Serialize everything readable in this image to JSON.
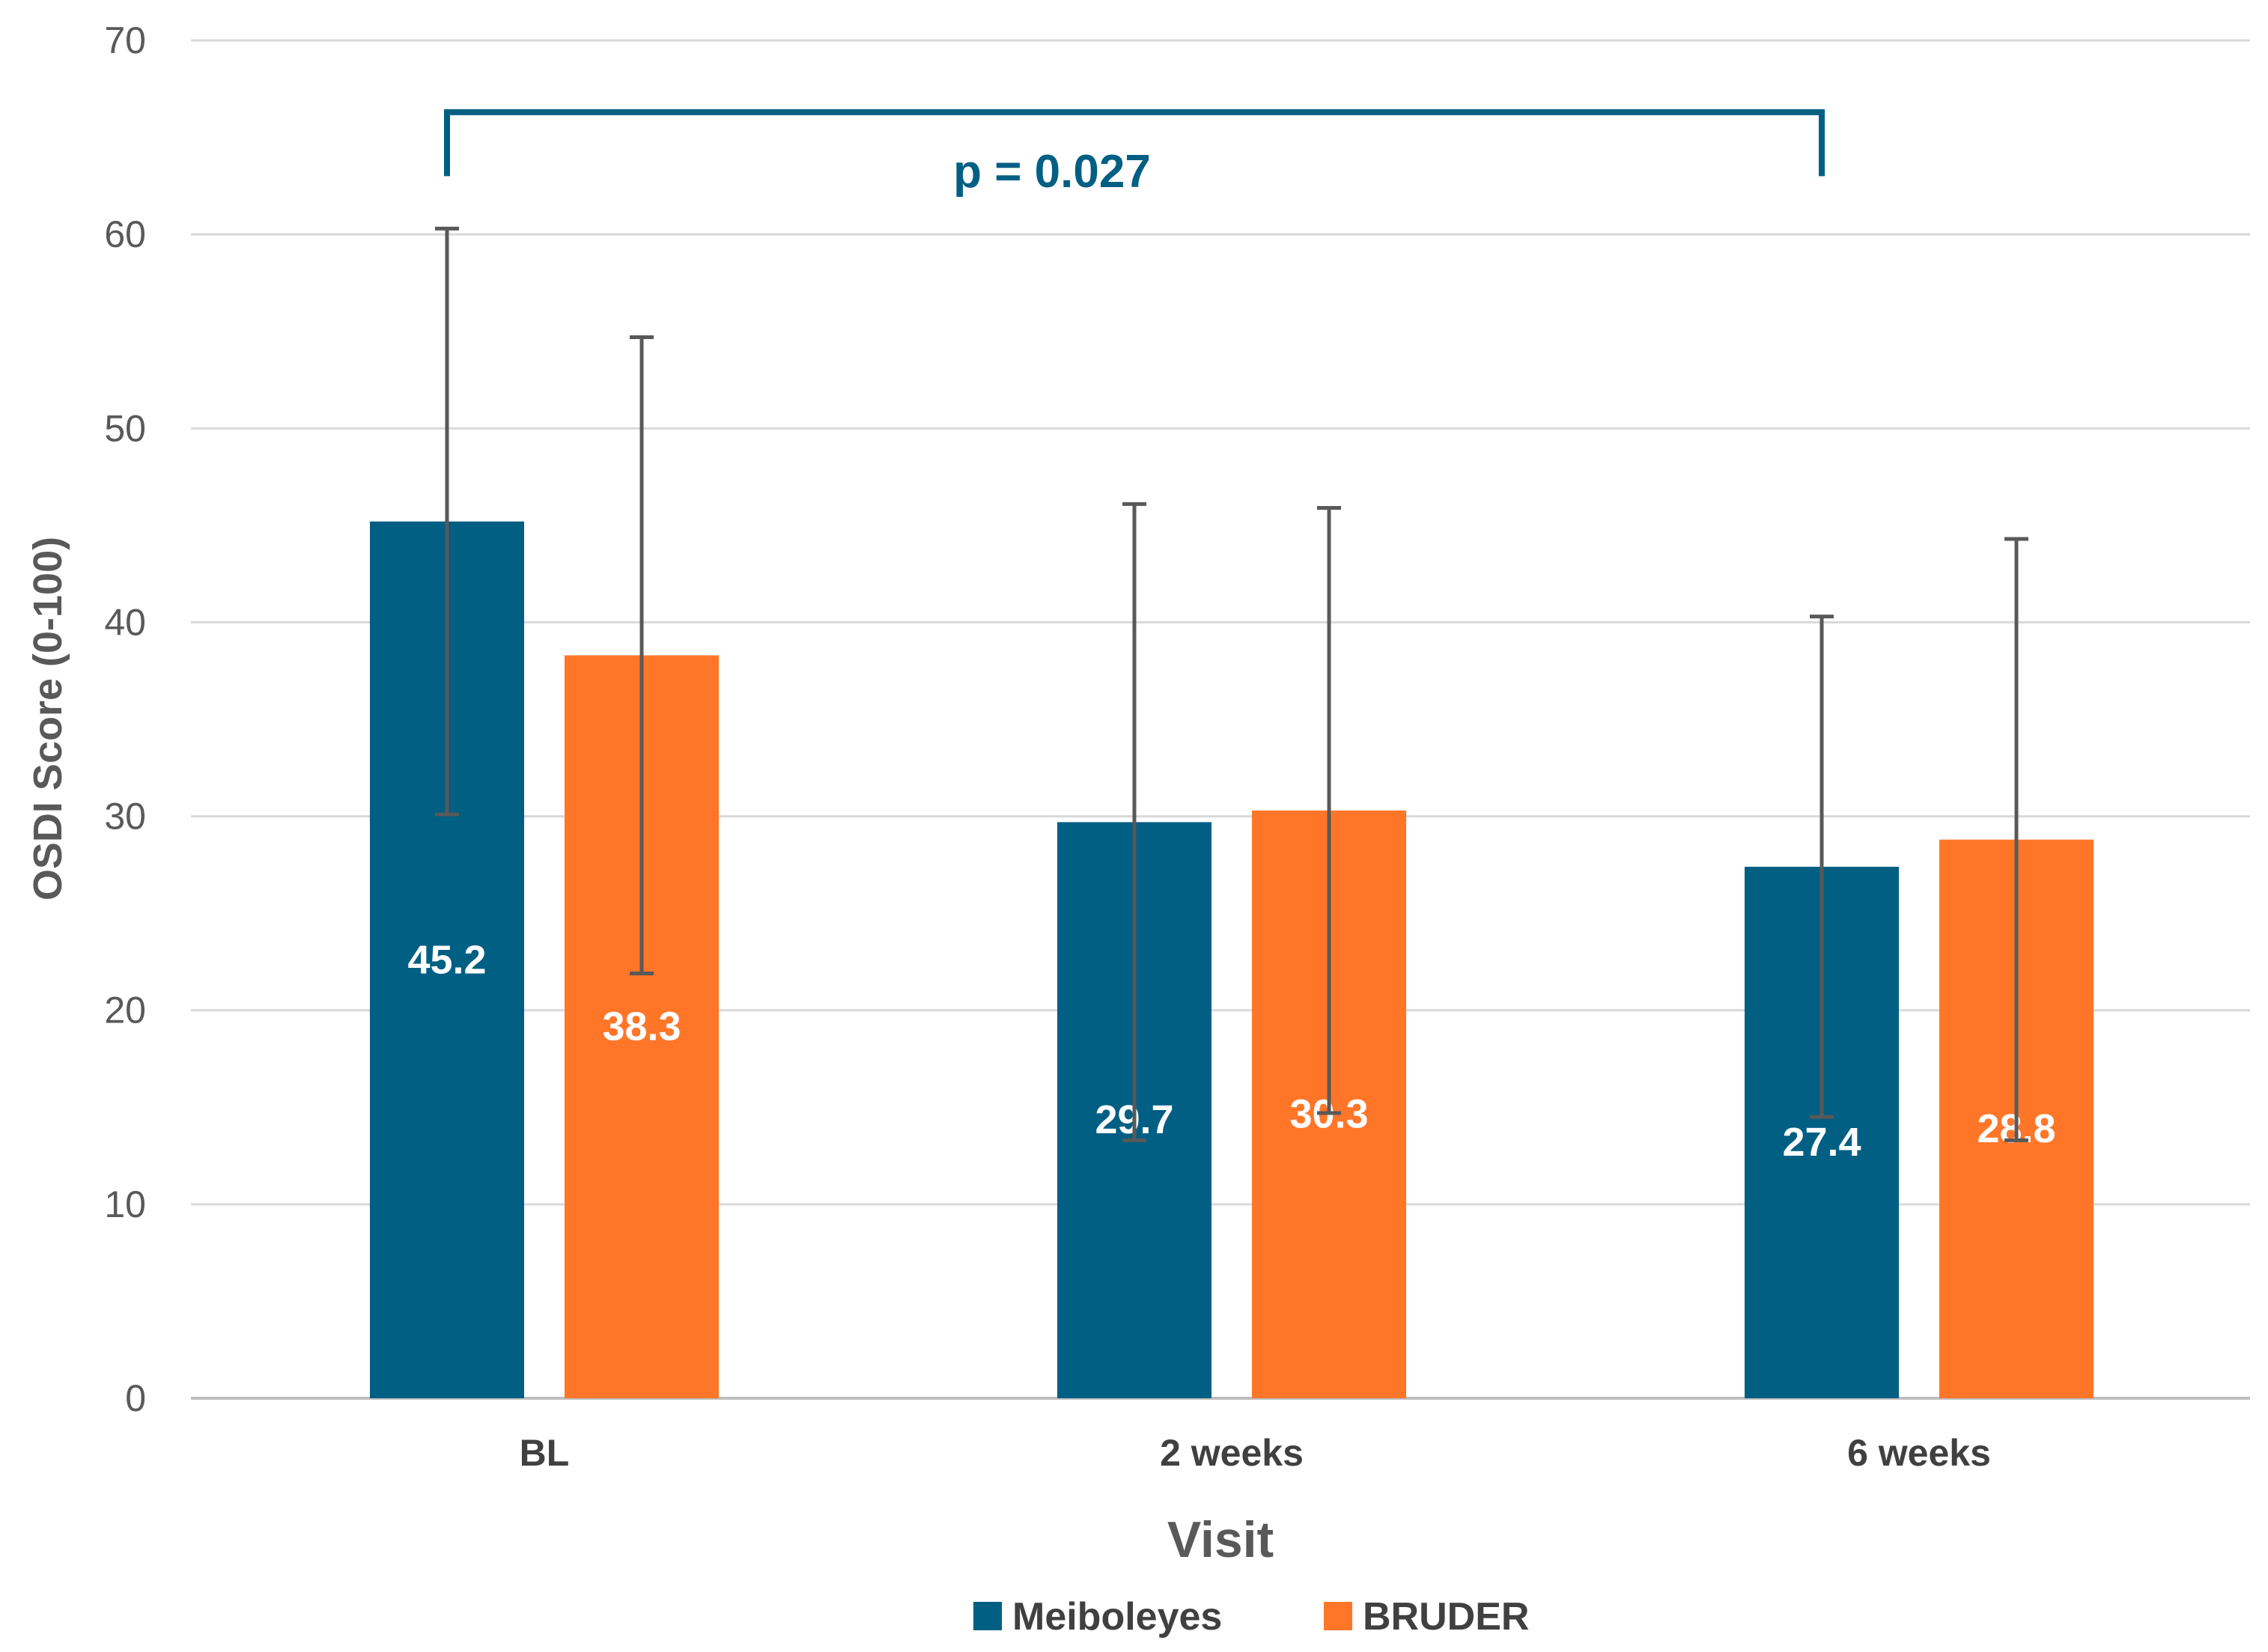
{
  "chart_data": {
    "type": "bar",
    "title": "",
    "xlabel": "Visit",
    "ylabel": "OSDI Score (0-100)",
    "ylim": [
      0,
      70
    ],
    "yticks": [
      0,
      10,
      20,
      30,
      40,
      50,
      60,
      70
    ],
    "grid": true,
    "categories": [
      "BL",
      "2 weeks",
      "6 weeks"
    ],
    "series": [
      {
        "name": "Meiboleyes",
        "color": "#005F83",
        "values": [
          45.2,
          29.7,
          27.4
        ],
        "labels": [
          "45.2",
          "29.7",
          "27.4"
        ],
        "error_low": [
          30.1,
          13.3,
          14.5
        ],
        "error_high": [
          60.3,
          46.1,
          40.3
        ]
      },
      {
        "name": "BRUDER",
        "color": "#FF7629",
        "values": [
          38.3,
          30.3,
          28.8
        ],
        "labels": [
          "38.3",
          "30.3",
          "28.8"
        ],
        "error_low": [
          21.9,
          14.7,
          13.3
        ],
        "error_high": [
          54.7,
          45.9,
          44.3
        ]
      }
    ],
    "annotation": {
      "text": "p = 0.027",
      "from_category": "BL",
      "to_category": "6 weeks",
      "bracket_value": 66.3,
      "drop_value": 63.0,
      "color": "#005F83"
    },
    "legend_position": "bottom-center",
    "error_bar_color": "#595959",
    "grid_color": "#D9D9D9"
  }
}
